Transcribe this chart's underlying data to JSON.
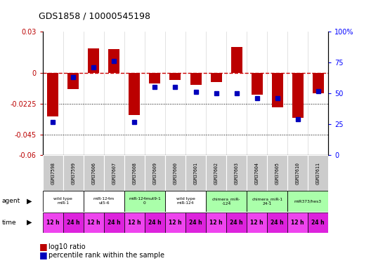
{
  "title": "GDS1858 / 10000545198",
  "samples": [
    "GSM37598",
    "GSM37599",
    "GSM37606",
    "GSM37607",
    "GSM37608",
    "GSM37609",
    "GSM37600",
    "GSM37601",
    "GSM37602",
    "GSM37603",
    "GSM37604",
    "GSM37605",
    "GSM37610",
    "GSM37611"
  ],
  "log10_ratio": [
    -0.032,
    -0.012,
    0.018,
    0.017,
    -0.031,
    -0.008,
    -0.005,
    -0.009,
    -0.007,
    0.019,
    -0.016,
    -0.025,
    -0.033,
    -0.015
  ],
  "percentile_rank": [
    27,
    63,
    71,
    76,
    27,
    55,
    55,
    51,
    50,
    50,
    46,
    46,
    29,
    52
  ],
  "ylim_left": [
    -0.06,
    0.03
  ],
  "ylim_right": [
    0,
    100
  ],
  "yticks_left": [
    0.03,
    0,
    -0.0225,
    -0.045,
    -0.06
  ],
  "yticks_right": [
    100,
    75,
    50,
    25,
    0
  ],
  "agents": [
    {
      "label": "wild type\nmiR-1",
      "start": 0,
      "end": 2,
      "color": "#ffffff"
    },
    {
      "label": "miR-124m\nut5-6",
      "start": 2,
      "end": 4,
      "color": "#ffffff"
    },
    {
      "label": "miR-124mut9-1\n0",
      "start": 4,
      "end": 6,
      "color": "#aaffaa"
    },
    {
      "label": "wild type\nmiR-124",
      "start": 6,
      "end": 8,
      "color": "#ffffff"
    },
    {
      "label": "chimera_miR-\n-124",
      "start": 8,
      "end": 10,
      "color": "#aaffaa"
    },
    {
      "label": "chimera_miR-1\n24-1",
      "start": 10,
      "end": 12,
      "color": "#aaffaa"
    },
    {
      "label": "miR373/hes3",
      "start": 12,
      "end": 14,
      "color": "#aaffaa"
    }
  ],
  "time_labels": [
    "12 h",
    "24 h",
    "12 h",
    "24 h",
    "12 h",
    "24 h",
    "12 h",
    "24 h",
    "12 h",
    "24 h",
    "12 h",
    "24 h",
    "12 h",
    "24 h"
  ],
  "bar_color": "#bb0000",
  "dot_color": "#0000bb",
  "zero_line_color": "#cc0000",
  "label_bg_color": "#cccccc",
  "time_color_even": "#ee44ee",
  "time_color_odd": "#dd22dd",
  "legend_bar": "log10 ratio",
  "legend_dot": "percentile rank within the sample"
}
